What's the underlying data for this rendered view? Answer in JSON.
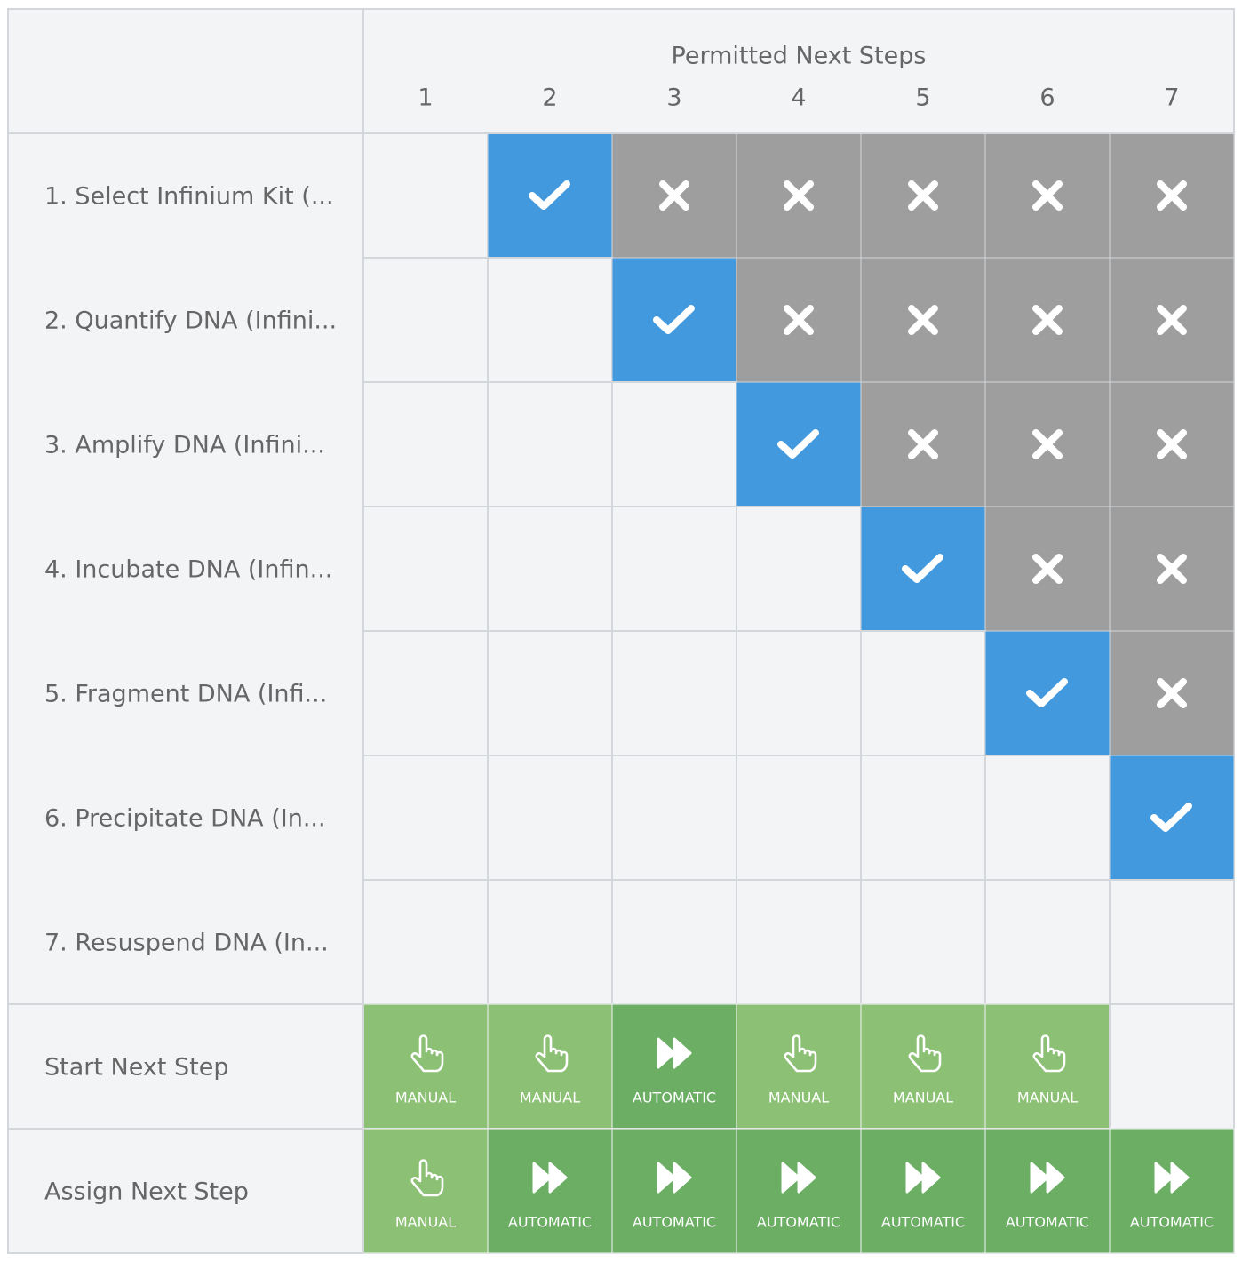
{
  "header": {
    "title": "Permitted Next Steps",
    "columns": [
      "1",
      "2",
      "3",
      "4",
      "5",
      "6",
      "7"
    ]
  },
  "rows": [
    "1. Select Infinium Kit (...",
    "2. Quantify DNA (Infini...",
    "3. Amplify DNA (Infini...",
    "4. Incubate DNA (Infin...",
    "5. Fragment DNA (Infi...",
    "6. Precipitate DNA (In...",
    "7. Resuspend DNA (In..."
  ],
  "start_next_step": {
    "label": "Start Next Step",
    "cells": [
      "MANUAL",
      "MANUAL",
      "AUTOMATIC",
      "MANUAL",
      "MANUAL",
      "MANUAL"
    ]
  },
  "assign_next_step": {
    "label": "Assign Next Step",
    "cells": [
      "MANUAL",
      "AUTOMATIC",
      "AUTOMATIC",
      "AUTOMATIC",
      "AUTOMATIC",
      "AUTOMATIC",
      "AUTOMATIC"
    ]
  }
}
